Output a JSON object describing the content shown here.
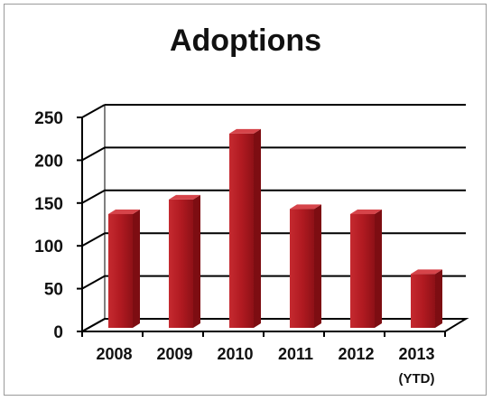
{
  "chart_data": {
    "type": "bar",
    "title": "Adoptions",
    "categories": [
      "2008",
      "2009",
      "2010",
      "2011",
      "2012",
      "2013"
    ],
    "category_sublabels": [
      "",
      "",
      "",
      "",
      "",
      "(YTD)"
    ],
    "values": [
      135,
      152,
      229,
      141,
      135,
      65
    ],
    "ylim": [
      0,
      250
    ],
    "yticks": [
      0,
      50,
      100,
      150,
      200,
      250
    ],
    "xlabel": "",
    "ylabel": "",
    "grid": true,
    "legend": "none",
    "bar_color": "#b11a21"
  }
}
